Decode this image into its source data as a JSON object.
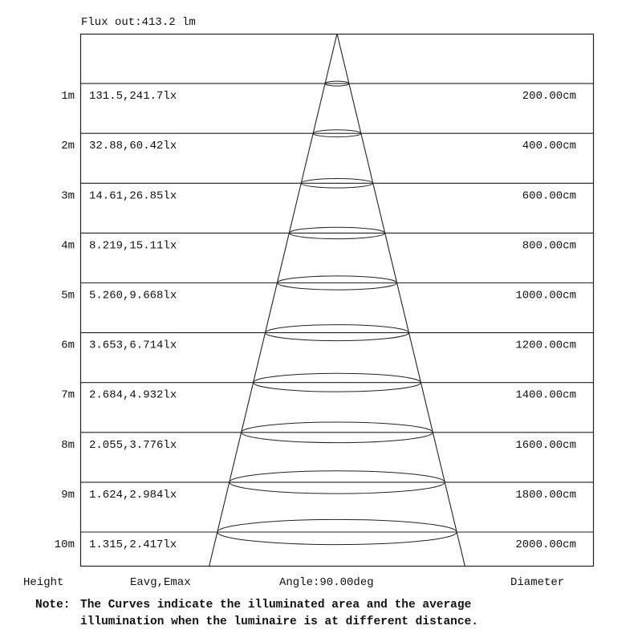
{
  "flux_label": "Flux out:413.2 lm",
  "rows": [
    {
      "height": "1m",
      "values": "131.5,241.7lx",
      "diameter": "200.00cm"
    },
    {
      "height": "2m",
      "values": "32.88,60.42lx",
      "diameter": "400.00cm"
    },
    {
      "height": "3m",
      "values": "14.61,26.85lx",
      "diameter": "600.00cm"
    },
    {
      "height": "4m",
      "values": "8.219,15.11lx",
      "diameter": "800.00cm"
    },
    {
      "height": "5m",
      "values": "5.260,9.668lx",
      "diameter": "1000.00cm"
    },
    {
      "height": "6m",
      "values": "3.653,6.714lx",
      "diameter": "1200.00cm"
    },
    {
      "height": "7m",
      "values": "2.684,4.932lx",
      "diameter": "1400.00cm"
    },
    {
      "height": "8m",
      "values": "2.055,3.776lx",
      "diameter": "1600.00cm"
    },
    {
      "height": "9m",
      "values": "1.624,2.984lx",
      "diameter": "1800.00cm"
    },
    {
      "height": "10m",
      "values": "1.315,2.417lx",
      "diameter": "2000.00cm"
    }
  ],
  "footer": {
    "height_label": "Height",
    "values_label": "Eavg,Emax",
    "angle_label": "Angle:90.00deg",
    "diameter_label": "Diameter"
  },
  "note": {
    "prefix": "Note:",
    "line1": "The Curves indicate the illuminated area and the average",
    "line2": "illumination when the luminaire is at different distance."
  }
}
